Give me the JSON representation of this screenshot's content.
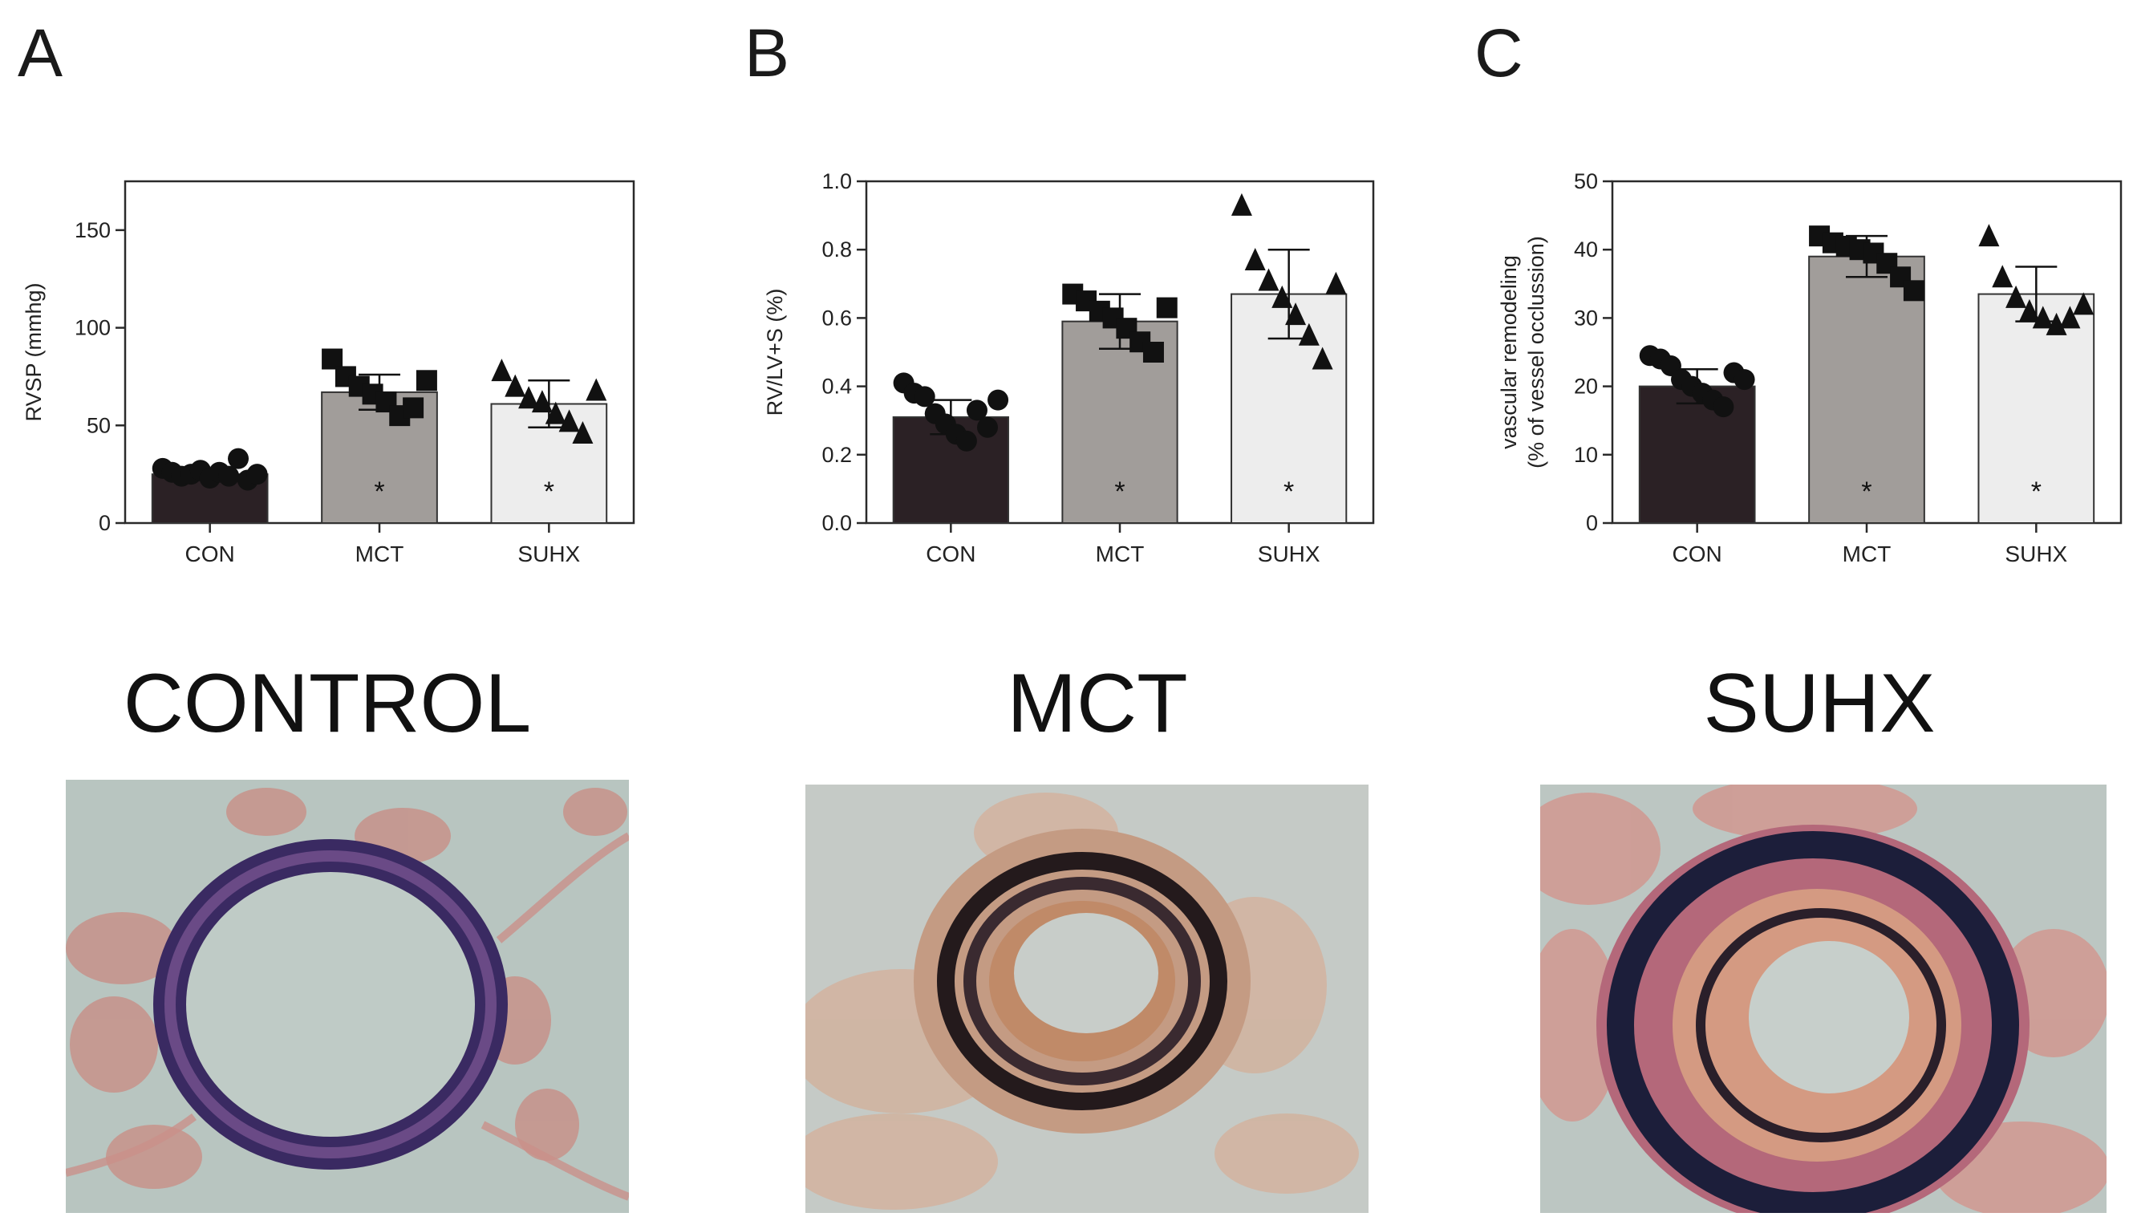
{
  "panels": [
    {
      "letter": "A"
    },
    {
      "letter": "B"
    },
    {
      "letter": "C"
    }
  ],
  "colors": {
    "con": "#2b2125",
    "mct": "#a19d9a",
    "suhx": "#ededed",
    "axis": "#2a2a2a"
  },
  "chart_data": [
    {
      "type": "bar",
      "categories": [
        "CON",
        "MCT",
        "SUHX"
      ],
      "values": [
        25,
        67,
        61
      ],
      "errors": [
        3,
        9,
        12
      ],
      "significance": [
        "",
        "*",
        "*"
      ],
      "points": [
        [
          28,
          26,
          24,
          25,
          27,
          23,
          26,
          24,
          33,
          22,
          25
        ],
        [
          84,
          75,
          70,
          66,
          62,
          55,
          59,
          73
        ],
        [
          78,
          70,
          64,
          62,
          56,
          52,
          46,
          68
        ]
      ],
      "markers": [
        "circle",
        "square",
        "triangle"
      ],
      "ylabel": "RVSP (mmhg)",
      "ylim": [
        0,
        175
      ],
      "yticks": [
        0,
        50,
        100,
        150
      ],
      "ytick_labels": [
        "0",
        "50",
        "100",
        "150"
      ]
    },
    {
      "type": "bar",
      "categories": [
        "CON",
        "MCT",
        "SUHX"
      ],
      "values": [
        0.31,
        0.59,
        0.67
      ],
      "errors": [
        0.05,
        0.08,
        0.13
      ],
      "significance": [
        "",
        "*",
        "*"
      ],
      "points": [
        [
          0.41,
          0.38,
          0.37,
          0.32,
          0.29,
          0.26,
          0.24,
          0.33,
          0.28,
          0.36
        ],
        [
          0.67,
          0.65,
          0.62,
          0.6,
          0.57,
          0.53,
          0.5,
          0.63
        ],
        [
          0.93,
          0.77,
          0.71,
          0.66,
          0.61,
          0.55,
          0.48,
          0.7
        ]
      ],
      "markers": [
        "circle",
        "square",
        "triangle"
      ],
      "ylabel": "RV/LV+S (%)",
      "ylim": [
        0,
        1.0
      ],
      "yticks": [
        0,
        0.2,
        0.4,
        0.6,
        0.8,
        1.0
      ],
      "ytick_labels": [
        "0.0",
        "0.2",
        "0.4",
        "0.6",
        "0.8",
        "1.0"
      ]
    },
    {
      "type": "bar",
      "categories": [
        "CON",
        "MCT",
        "SUHX"
      ],
      "values": [
        20,
        39,
        33.5
      ],
      "errors": [
        2.5,
        3,
        4
      ],
      "significance": [
        "",
        "*",
        "*"
      ],
      "points": [
        [
          24.5,
          24,
          23,
          21,
          20,
          19,
          18,
          17,
          22,
          21
        ],
        [
          42,
          41,
          40.5,
          40,
          39.5,
          38,
          36,
          34
        ],
        [
          42,
          36,
          33,
          31,
          30,
          29,
          30,
          32
        ]
      ],
      "markers": [
        "circle",
        "square",
        "triangle"
      ],
      "ylabel": "vascular remodeling",
      "ylabel2": "(% of vessel occlussion)",
      "ylim": [
        0,
        50
      ],
      "yticks": [
        0,
        10,
        20,
        30,
        40,
        50
      ],
      "ytick_labels": [
        "0",
        "10",
        "20",
        "30",
        "40",
        "50"
      ]
    }
  ],
  "photos": [
    {
      "title": "CONTROL",
      "content": "histology image: pulmonary vessel, thin wall"
    },
    {
      "title": "MCT",
      "content": "histology image: pulmonary vessel, thickened wall"
    },
    {
      "title": "SUHX",
      "content": "histology image: pulmonary vessel, severely thickened wall"
    }
  ]
}
